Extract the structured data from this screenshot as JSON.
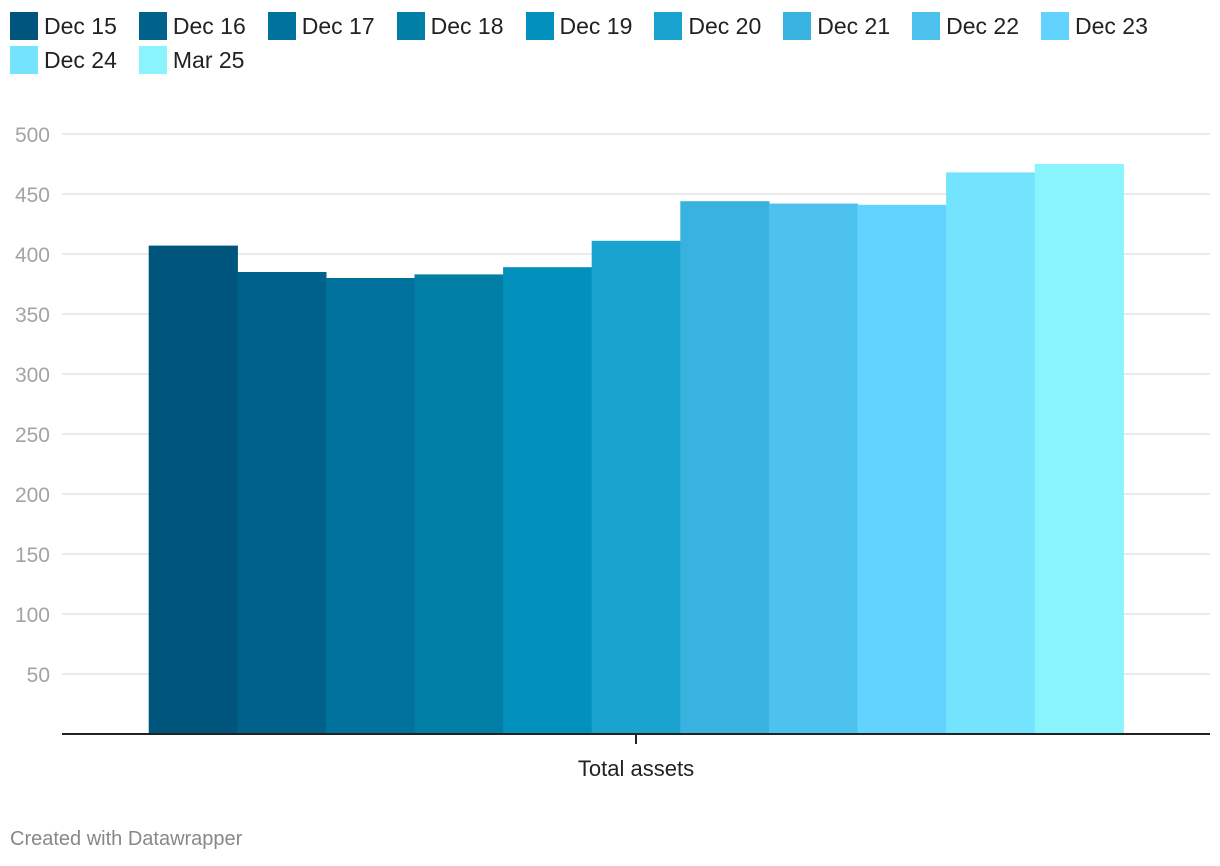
{
  "chart_data": {
    "type": "bar",
    "categories": [
      "Total assets"
    ],
    "series": [
      {
        "name": "Dec 15",
        "values": [
          407
        ],
        "color": "#00557c"
      },
      {
        "name": "Dec 16",
        "values": [
          385
        ],
        "color": "#00628b"
      },
      {
        "name": "Dec 17",
        "values": [
          380
        ],
        "color": "#00719c"
      },
      {
        "name": "Dec 18",
        "values": [
          383
        ],
        "color": "#017ea5"
      },
      {
        "name": "Dec 19",
        "values": [
          389
        ],
        "color": "#0291bd"
      },
      {
        "name": "Dec 20",
        "values": [
          411
        ],
        "color": "#1ba3cf"
      },
      {
        "name": "Dec 21",
        "values": [
          444
        ],
        "color": "#38b2de"
      },
      {
        "name": "Dec 22",
        "values": [
          442
        ],
        "color": "#4ec2ee"
      },
      {
        "name": "Dec 23",
        "values": [
          441
        ],
        "color": "#62d3fe"
      },
      {
        "name": "Dec 24",
        "values": [
          468
        ],
        "color": "#74e3fe"
      },
      {
        "name": "Mar 25",
        "values": [
          475
        ],
        "color": "#8af4fd"
      }
    ],
    "ylim": [
      0,
      500
    ],
    "yticks": [
      50,
      100,
      150,
      200,
      250,
      300,
      350,
      400,
      450,
      500
    ],
    "grid": true,
    "legend": "top-left",
    "xlabel": "",
    "ylabel": ""
  },
  "footer": {
    "credit": "Created with Datawrapper"
  }
}
